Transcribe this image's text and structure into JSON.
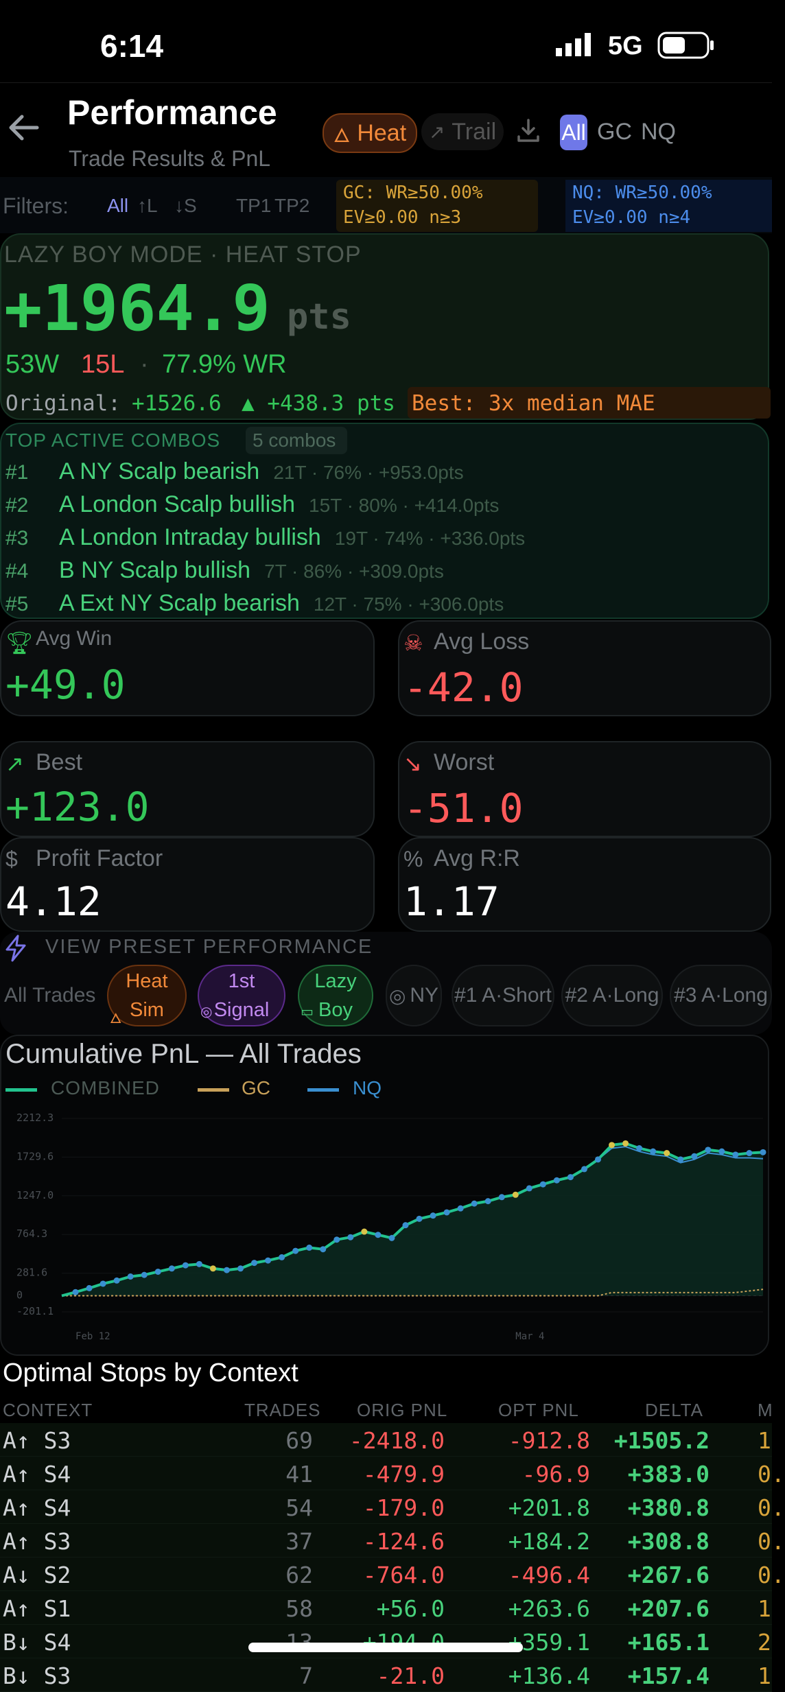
{
  "status_bar": {
    "time": "6:14",
    "network": "5G"
  },
  "header": {
    "title": "Performance",
    "subtitle": "Trade Results & PnL",
    "heat_label": "Heat",
    "trail_label": "Trail",
    "symbols": [
      "All",
      "GC",
      "NQ"
    ]
  },
  "filters": {
    "label": "Filters:",
    "dirs": [
      "All",
      "↑L",
      "↓S"
    ],
    "tps": [
      "TP1",
      "TP2"
    ],
    "gc_line1": "GC: WR≥50.00%",
    "gc_line2": "EV≥0.00 n≥3",
    "nq_line1": "NQ: WR≥50.00%",
    "nq_line2": "EV≥0.00 n≥4"
  },
  "summary": {
    "mode": "LAZY BOY MODE · HEAT STOP",
    "total": "+1964.9",
    "unit": "pts",
    "wins": "53W",
    "losses": "15L",
    "sep": "·",
    "winrate": "77.9% WR",
    "original_label": "Original:",
    "original_value": "+1526.6",
    "delta": "▲ +438.3 pts",
    "best_label": "Best: 3x median MAE"
  },
  "combos": {
    "title": "TOP ACTIVE COMBOS",
    "count": "5 combos",
    "items": [
      {
        "rank": "#1",
        "name": "A NY Scalp bearish",
        "meta": "21T · 76% · +953.0pts"
      },
      {
        "rank": "#2",
        "name": "A London Scalp bullish",
        "meta": "15T · 80% · +414.0pts"
      },
      {
        "rank": "#3",
        "name": "A London Intraday bullish",
        "meta": "19T · 74% · +336.0pts"
      },
      {
        "rank": "#4",
        "name": "B NY Scalp bullish",
        "meta": "7T · 86% · +309.0pts"
      },
      {
        "rank": "#5",
        "name": "A Ext NY Scalp bearish",
        "meta": "12T · 75% · +306.0pts"
      }
    ]
  },
  "stats": {
    "avg_win_label": "Avg Win",
    "avg_win": "+49.0",
    "avg_loss_label": "Avg Loss",
    "avg_loss": "-42.0",
    "best_label": "Best",
    "best": "+123.0",
    "worst_label": "Worst",
    "worst": "-51.0",
    "pf_label": "Profit Factor",
    "pf": "4.12",
    "rr_label": "Avg R:R",
    "rr": "1.17"
  },
  "presets": {
    "title": "VIEW PRESET PERFORMANCE",
    "all": "All Trades",
    "heat_1": "Heat",
    "heat_2": "Sim",
    "signal_1": "1st",
    "signal_2": "Signal",
    "lazy_1": "Lazy",
    "lazy_2": "Boy",
    "ny": "NY",
    "p1": "#1 A·Short",
    "p2": "#2 A·Long",
    "p3": "#3 A·Long"
  },
  "chart_data": {
    "type": "line",
    "title": "Cumulative PnL — All Trades",
    "legend": [
      "COMBINED",
      "GC",
      "NQ"
    ],
    "legend_placement": "top-left",
    "x_ticks": [
      "Feb 12",
      "Mar 4"
    ],
    "y_ticks": [
      "2212.3",
      "1729.6",
      "1247.0",
      "764.3",
      "281.6",
      "0",
      "-201.1"
    ],
    "ylim": [
      -201.1,
      2212.3
    ],
    "colors": {
      "combined": "#22c38e",
      "gc": "#c8a15a",
      "nq": "#3a8fd0"
    },
    "series": [
      {
        "name": "COMBINED",
        "values": [
          0,
          45,
          95,
          150,
          190,
          240,
          260,
          300,
          340,
          380,
          395,
          340,
          320,
          340,
          410,
          440,
          480,
          560,
          600,
          580,
          700,
          730,
          800,
          760,
          720,
          880,
          960,
          1000,
          1040,
          1090,
          1150,
          1180,
          1230,
          1260,
          1340,
          1390,
          1440,
          1480,
          1580,
          1700,
          1880,
          1900,
          1840,
          1800,
          1780,
          1700,
          1740,
          1820,
          1800,
          1760,
          1780,
          1790
        ]
      },
      {
        "name": "GC",
        "values": [
          0,
          0,
          0,
          0,
          0,
          0,
          0,
          0,
          0,
          0,
          0,
          0,
          0,
          0,
          0,
          0,
          0,
          0,
          0,
          0,
          0,
          0,
          0,
          0,
          0,
          0,
          0,
          0,
          0,
          0,
          0,
          0,
          0,
          0,
          0,
          0,
          0,
          0,
          0,
          0,
          40,
          40,
          40,
          40,
          40,
          40,
          40,
          40,
          40,
          40,
          60,
          80
        ]
      },
      {
        "name": "NQ",
        "values": [
          0,
          45,
          95,
          150,
          190,
          240,
          260,
          300,
          340,
          380,
          395,
          340,
          320,
          340,
          410,
          440,
          480,
          560,
          600,
          580,
          700,
          730,
          800,
          760,
          720,
          880,
          960,
          1000,
          1040,
          1090,
          1150,
          1180,
          1230,
          1260,
          1340,
          1390,
          1440,
          1480,
          1580,
          1700,
          1840,
          1860,
          1800,
          1760,
          1740,
          1660,
          1700,
          1780,
          1760,
          1720,
          1720,
          1710
        ]
      }
    ]
  },
  "stops": {
    "title": "Optimal Stops by Context",
    "headers": [
      "CONTEXT",
      "TRADES",
      "ORIG PNL",
      "OPT PNL",
      "DELTA",
      "M"
    ],
    "rows": [
      [
        "A↑ S3",
        "69",
        "-2418.0",
        "-912.8",
        "+1505.2",
        "1"
      ],
      [
        "A↑ S4",
        "41",
        "-479.9",
        "-96.9",
        "+383.0",
        "0."
      ],
      [
        "A↑ S4",
        "54",
        "-179.0",
        "+201.8",
        "+380.8",
        "0."
      ],
      [
        "A↑ S3",
        "37",
        "-124.6",
        "+184.2",
        "+308.8",
        "0."
      ],
      [
        "A↓ S2",
        "62",
        "-764.0",
        "-496.4",
        "+267.6",
        "0."
      ],
      [
        "A↑ S1",
        "58",
        "+56.0",
        "+263.6",
        "+207.6",
        "1"
      ],
      [
        "B↓ S4",
        "13",
        "+194.0",
        "+359.1",
        "+165.1",
        "2"
      ],
      [
        "B↓ S3",
        "7",
        "-21.0",
        "+136.4",
        "+157.4",
        "1"
      ]
    ]
  }
}
